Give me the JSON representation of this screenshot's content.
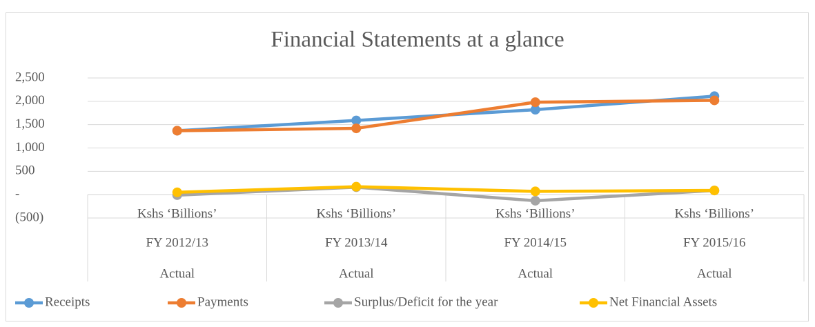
{
  "chart_data": {
    "type": "line",
    "title": "Financial Statements at a glance",
    "categories": [
      [
        "Kshs ‘Billions’",
        "FY 2012/13",
        "Actual"
      ],
      [
        "Kshs ‘Billions’",
        "FY 2013/14",
        "Actual"
      ],
      [
        "Kshs ‘Billions’",
        "FY 2014/15",
        "Actual"
      ],
      [
        "Kshs ‘Billions’",
        "FY 2015/16",
        "Actual"
      ]
    ],
    "series": [
      {
        "name": "Receipts",
        "color": "#5b9bd5",
        "values": [
          1370,
          1590,
          1820,
          2110
        ]
      },
      {
        "name": "Payments",
        "color": "#ed7d31",
        "values": [
          1370,
          1420,
          1980,
          2020
        ]
      },
      {
        "name": "Surplus/Deficit for the year",
        "color": "#a5a5a5",
        "values": [
          -10,
          160,
          -130,
          90
        ]
      },
      {
        "name": "Net Financial Assets",
        "color": "#ffc000",
        "values": [
          50,
          170,
          70,
          90
        ]
      }
    ],
    "ylim": [
      -500,
      2500
    ],
    "yticks": [
      {
        "value": -500,
        "label": "(500)"
      },
      {
        "value": 0,
        "label": "-"
      },
      500,
      {
        "value": 1000,
        "label": "1,000"
      },
      {
        "value": 1500,
        "label": "1,500"
      },
      {
        "value": 2000,
        "label": "2,000"
      },
      {
        "value": 2500,
        "label": "2,500"
      }
    ],
    "grid": true,
    "legend": "bottom"
  }
}
